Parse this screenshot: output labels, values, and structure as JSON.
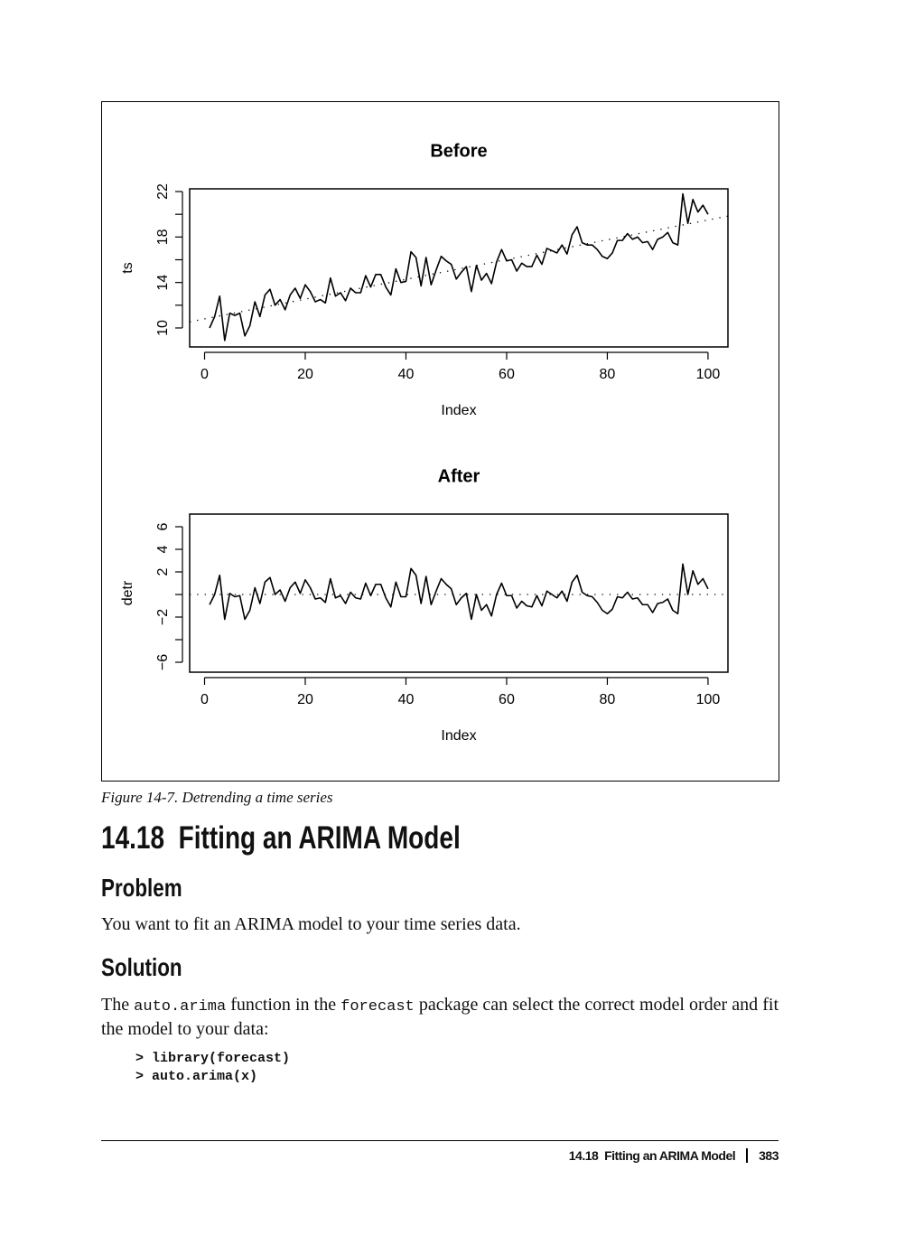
{
  "chart_data": [
    {
      "type": "line",
      "title": "Before",
      "xlabel": "Index",
      "ylabel": "ts",
      "color": "#000000",
      "x": [
        1,
        2,
        3,
        4,
        5,
        6,
        7,
        8,
        9,
        10,
        11,
        12,
        13,
        14,
        15,
        16,
        17,
        18,
        19,
        20,
        21,
        22,
        23,
        24,
        25,
        26,
        27,
        28,
        29,
        30,
        31,
        32,
        33,
        34,
        35,
        36,
        37,
        38,
        39,
        40,
        41,
        42,
        43,
        44,
        45,
        46,
        47,
        48,
        49,
        50,
        51,
        52,
        53,
        54,
        55,
        56,
        57,
        58,
        59,
        60,
        61,
        62,
        63,
        64,
        65,
        66,
        67,
        68,
        69,
        70,
        71,
        72,
        73,
        74,
        75,
        76,
        77,
        78,
        79,
        80,
        81,
        82,
        83,
        84,
        85,
        86,
        87,
        88,
        89,
        90,
        91,
        92,
        93,
        94,
        95,
        96,
        97,
        98,
        99,
        100
      ],
      "values": [
        10.0,
        11.0,
        12.8,
        8.9,
        11.3,
        11.1,
        11.3,
        9.3,
        10.2,
        12.3,
        11.0,
        12.9,
        13.4,
        12.0,
        12.5,
        11.6,
        12.9,
        13.5,
        12.6,
        13.8,
        13.2,
        12.3,
        12.5,
        12.2,
        14.4,
        12.8,
        13.1,
        12.4,
        13.5,
        13.1,
        13.1,
        14.6,
        13.6,
        14.7,
        14.7,
        13.6,
        12.9,
        15.2,
        14.0,
        14.1,
        16.7,
        16.2,
        13.7,
        16.2,
        13.8,
        15.1,
        16.3,
        15.9,
        15.6,
        14.3,
        14.9,
        15.4,
        13.2,
        15.5,
        14.2,
        14.8,
        13.9,
        15.8,
        16.9,
        15.9,
        16.0,
        15.0,
        15.7,
        15.4,
        15.4,
        16.4,
        15.6,
        17.0,
        16.8,
        16.6,
        17.3,
        16.5,
        18.2,
        18.9,
        17.5,
        17.3,
        17.3,
        16.9,
        16.3,
        16.1,
        16.6,
        17.7,
        17.7,
        18.3,
        17.8,
        18.0,
        17.5,
        17.6,
        16.9,
        17.8,
        18.0,
        18.4,
        17.5,
        17.3,
        21.8,
        19.2,
        21.3,
        20.2,
        20.8,
        20.0
      ],
      "xlim": [
        -2.96,
        103.96
      ],
      "ylim": [
        8.33,
        22.24
      ],
      "xticks": [
        0,
        20,
        40,
        60,
        80,
        100
      ],
      "yticks": [
        10,
        14,
        18,
        22
      ],
      "yminor_ticks": [
        12,
        16,
        20
      ],
      "reference_line": {
        "x": [
          -2.96,
          103.96
        ],
        "values": [
          10.54,
          19.84
        ],
        "style": "dotted"
      }
    },
    {
      "type": "line",
      "title": "After",
      "xlabel": "Index",
      "ylabel": "detr",
      "color": "#000000",
      "x": [
        1,
        2,
        3,
        4,
        5,
        6,
        7,
        8,
        9,
        10,
        11,
        12,
        13,
        14,
        15,
        16,
        17,
        18,
        19,
        20,
        21,
        22,
        23,
        24,
        25,
        26,
        27,
        28,
        29,
        30,
        31,
        32,
        33,
        34,
        35,
        36,
        37,
        38,
        39,
        40,
        41,
        42,
        43,
        44,
        45,
        46,
        47,
        48,
        49,
        50,
        51,
        52,
        53,
        54,
        55,
        56,
        57,
        58,
        59,
        60,
        61,
        62,
        63,
        64,
        65,
        66,
        67,
        68,
        69,
        70,
        71,
        72,
        73,
        74,
        75,
        76,
        77,
        78,
        79,
        80,
        81,
        82,
        83,
        84,
        85,
        86,
        87,
        88,
        89,
        90,
        91,
        92,
        93,
        94,
        95,
        96,
        97,
        98,
        99,
        100
      ],
      "values": [
        -0.9,
        0.0,
        1.7,
        -2.2,
        0.1,
        -0.2,
        -0.1,
        -2.2,
        -1.4,
        0.6,
        -0.8,
        1.1,
        1.5,
        0.0,
        0.4,
        -0.6,
        0.6,
        1.1,
        0.1,
        1.3,
        0.6,
        -0.4,
        -0.3,
        -0.7,
        1.4,
        -0.3,
        -0.1,
        -0.8,
        0.2,
        -0.3,
        -0.4,
        1.0,
        -0.1,
        0.9,
        0.9,
        -0.3,
        -1.1,
        1.1,
        -0.2,
        -0.2,
        2.3,
        1.7,
        -0.8,
        1.6,
        -0.9,
        0.3,
        1.4,
        0.9,
        0.5,
        -0.9,
        -0.3,
        0.1,
        -2.2,
        0.0,
        -1.4,
        -0.9,
        -1.9,
        0.0,
        1.0,
        -0.1,
        -0.1,
        -1.2,
        -0.6,
        -1.0,
        -1.1,
        -0.1,
        -1.0,
        0.3,
        0.0,
        -0.3,
        0.3,
        -0.6,
        1.1,
        1.7,
        0.2,
        -0.1,
        -0.2,
        -0.7,
        -1.4,
        -1.7,
        -1.3,
        -0.2,
        -0.3,
        0.2,
        -0.4,
        -0.3,
        -0.9,
        -0.9,
        -1.6,
        -0.8,
        -0.7,
        -0.4,
        -1.4,
        -1.7,
        2.7,
        0.0,
        2.1,
        0.9,
        1.4,
        0.5
      ],
      "xlim": [
        -2.96,
        103.96
      ],
      "ylim": [
        -6.88,
        7.12
      ],
      "xticks": [
        0,
        20,
        40,
        60,
        80,
        100
      ],
      "yticks": [
        {
          "value": -6,
          "label": "−6"
        },
        {
          "value": -2,
          "label": "−2"
        },
        2,
        4,
        6
      ],
      "yminor_ticks": [
        -4,
        0
      ],
      "reference_line": {
        "x": [
          -2.96,
          103.96
        ],
        "values": [
          0,
          0
        ],
        "style": "dotted"
      }
    }
  ],
  "document": {
    "caption": "Figure 14-7. Detrending a time series",
    "heading": "14.18  Fitting an ARIMA Model",
    "problem_heading": "Problem",
    "problem_text": "You want to fit an ARIMA model to your time series data.",
    "solution_heading": "Solution",
    "solution_text": [
      "The ",
      "auto.arima",
      " function in the ",
      "forecast",
      " package can select the correct model order and fit the model to your data:"
    ],
    "code": [
      "> library(forecast)",
      "> auto.arima(x)"
    ],
    "footer_title": "14.18  Fitting an ARIMA Model",
    "page_number": "383"
  }
}
